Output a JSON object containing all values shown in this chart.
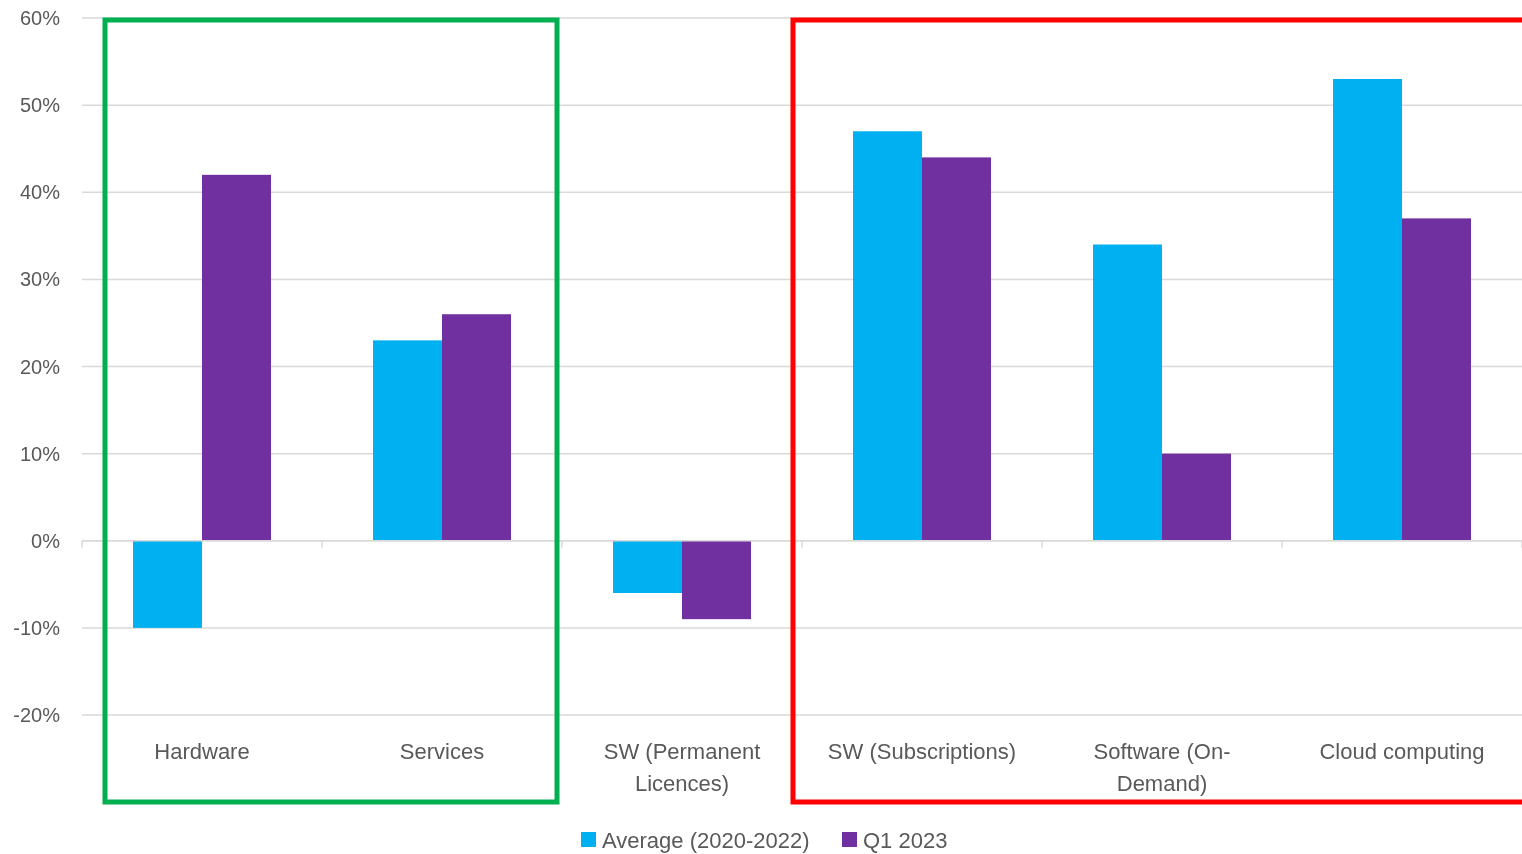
{
  "chart_data": {
    "type": "bar",
    "categories": [
      "Hardware",
      "Services",
      "SW (Permanent Licences)",
      "SW (Subscriptions)",
      "Software (On-Demand)",
      "Cloud computing"
    ],
    "series": [
      {
        "name": "Average (2020-2022)",
        "color": "#00b0f0",
        "values": [
          -10,
          23,
          -6,
          47,
          34,
          53
        ]
      },
      {
        "name": "Q1 2023",
        "color": "#7030a0",
        "values": [
          42,
          26,
          -9,
          44,
          10,
          37
        ]
      }
    ],
    "ylim": [
      -20,
      60
    ],
    "yticks": [
      {
        "value": -20,
        "label": "-20%"
      },
      {
        "value": -10,
        "label": "-10%"
      },
      {
        "value": 0,
        "label": "0%"
      },
      {
        "value": 10,
        "label": "10%"
      },
      {
        "value": 20,
        "label": "20%"
      },
      {
        "value": 30,
        "label": "30%"
      },
      {
        "value": 40,
        "label": "40%"
      },
      {
        "value": 50,
        "label": "50%"
      },
      {
        "value": 60,
        "label": "60%"
      }
    ],
    "grid": "y",
    "legend": "bottom"
  }
}
